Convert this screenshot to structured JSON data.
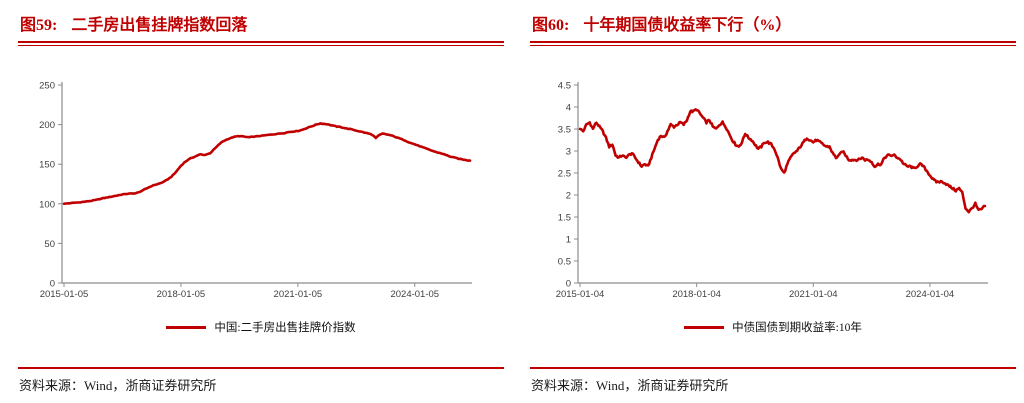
{
  "accent_color": "#C00000",
  "figures": [
    {
      "label": "图59:",
      "title": "二手房出售挂牌指数回落",
      "source": "资料来源：Wind，浙商证券研究所"
    },
    {
      "label": "图60:",
      "title": "十年期国债收益率下行（%）",
      "source": "资料来源：Wind，浙商证券研究所"
    }
  ],
  "chart_data": [
    {
      "type": "line",
      "title": "二手房出售挂牌指数回落",
      "series_name": "中国:二手房出售挂牌价指数",
      "x_start": "2015-01",
      "x_end": "2025-06",
      "x_interval": "monthly",
      "x_tick_labels": [
        "2015-01-05",
        "2018-01-05",
        "2021-01-05",
        "2024-01-05"
      ],
      "x_tick_indices": [
        0,
        36,
        72,
        108
      ],
      "ylim": [
        0,
        250
      ],
      "yticks": [
        0,
        50,
        100,
        150,
        200,
        250
      ],
      "grid": false,
      "legend_position": "bottom-center",
      "line_color": "#C00000",
      "axis_color": "#8c8c8c",
      "jitter": 0.7,
      "jitter_substeps": 2,
      "values": [
        100,
        100.4,
        100.8,
        101.2,
        101.6,
        102,
        102.5,
        103,
        103.6,
        104.2,
        105,
        106,
        107,
        107.8,
        108.5,
        109.3,
        110.2,
        111,
        111.8,
        112.4,
        112.8,
        113,
        113.3,
        114.5,
        116.5,
        118.5,
        120.5,
        122.5,
        124,
        125,
        126.5,
        128.5,
        131,
        134,
        138,
        143,
        148,
        152,
        155,
        157.5,
        159,
        161,
        162.5,
        161.5,
        162.5,
        164,
        168,
        172,
        176,
        179,
        181,
        182.5,
        184,
        185,
        185.5,
        185,
        184.5,
        184,
        184.5,
        185,
        185.5,
        186,
        186.5,
        187,
        187.5,
        188,
        188.5,
        189,
        189.5,
        190.5,
        191,
        191.5,
        192,
        193,
        194.5,
        196,
        197.5,
        199,
        200.5,
        201.5,
        201,
        200.5,
        199.5,
        198.5,
        197.5,
        197,
        196,
        195,
        194.5,
        193.5,
        192.5,
        191.5,
        190.5,
        189.5,
        188.5,
        187,
        183,
        186.5,
        188.5,
        188,
        187,
        186,
        184.5,
        183,
        181.5,
        180,
        178,
        176.5,
        175,
        173.5,
        172,
        170.5,
        169,
        167.5,
        166,
        164.8,
        163.8,
        162.5,
        161,
        159.5,
        158.5,
        157.5,
        156.5,
        155.8,
        155,
        154.5
      ]
    },
    {
      "type": "line",
      "title": "十年期国债收益率下行（%）",
      "series_name": "中债国债到期收益率:10年",
      "x_start": "2015-01",
      "x_end": "2025-06",
      "x_interval": "monthly",
      "x_tick_labels": [
        "2015-01-04",
        "2018-01-04",
        "2021-01-04",
        "2024-01-04"
      ],
      "x_tick_indices": [
        0,
        36,
        72,
        108
      ],
      "ylim": [
        0,
        4.5
      ],
      "yticks": [
        0,
        0.5,
        1,
        1.5,
        2,
        2.5,
        3,
        3.5,
        4,
        4.5
      ],
      "grid": false,
      "legend_position": "bottom-center",
      "line_color": "#C00000",
      "axis_color": "#8c8c8c",
      "jitter": 0.05,
      "jitter_substeps": 3,
      "values": [
        3.5,
        3.45,
        3.6,
        3.65,
        3.5,
        3.65,
        3.55,
        3.45,
        3.3,
        3.1,
        3.15,
        2.9,
        2.85,
        2.9,
        2.85,
        2.9,
        2.95,
        2.85,
        2.75,
        2.65,
        2.7,
        2.65,
        2.85,
        3.05,
        3.25,
        3.35,
        3.3,
        3.45,
        3.6,
        3.55,
        3.6,
        3.65,
        3.6,
        3.7,
        3.9,
        3.9,
        3.95,
        3.85,
        3.75,
        3.65,
        3.7,
        3.55,
        3.5,
        3.6,
        3.65,
        3.55,
        3.4,
        3.25,
        3.15,
        3.1,
        3.2,
        3.4,
        3.3,
        3.25,
        3.15,
        3.05,
        3.1,
        3.2,
        3.2,
        3.15,
        3.05,
        2.85,
        2.6,
        2.5,
        2.7,
        2.85,
        2.95,
        3.0,
        3.1,
        3.2,
        3.3,
        3.25,
        3.2,
        3.25,
        3.2,
        3.15,
        3.1,
        3.1,
        2.95,
        2.85,
        2.9,
        3.0,
        2.9,
        2.8,
        2.8,
        2.8,
        2.8,
        2.85,
        2.8,
        2.8,
        2.75,
        2.65,
        2.7,
        2.7,
        2.85,
        2.9,
        2.9,
        2.9,
        2.85,
        2.8,
        2.7,
        2.65,
        2.65,
        2.6,
        2.65,
        2.7,
        2.65,
        2.55,
        2.45,
        2.35,
        2.3,
        2.3,
        2.3,
        2.25,
        2.2,
        2.15,
        2.1,
        2.15,
        2.05,
        1.7,
        1.62,
        1.7,
        1.8,
        1.65,
        1.68,
        1.75
      ]
    }
  ]
}
